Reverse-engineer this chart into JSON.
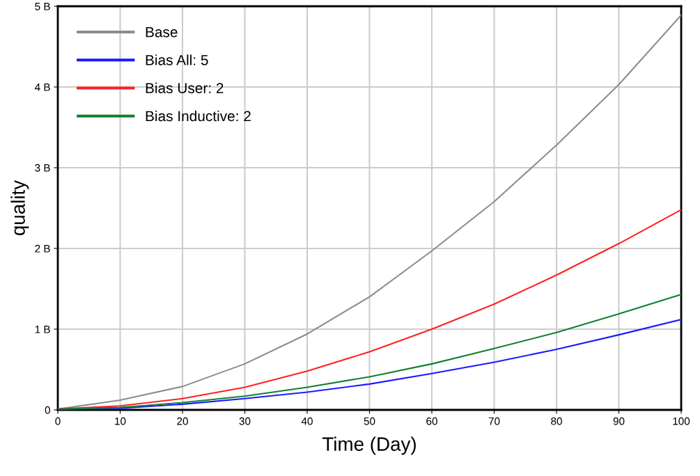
{
  "chart_data": {
    "type": "line",
    "xlabel": "Time (Day)",
    "ylabel": "quality",
    "x": [
      0,
      10,
      20,
      30,
      40,
      50,
      60,
      70,
      80,
      90,
      100
    ],
    "series": [
      {
        "name": "Base",
        "color": "#8c8c8c",
        "values": [
          0.01,
          0.12,
          0.29,
          0.57,
          0.94,
          1.4,
          1.97,
          2.58,
          3.28,
          4.03,
          4.89
        ]
      },
      {
        "name": "Bias All: 5",
        "color": "#1a1aff",
        "values": [
          0.01,
          0.02,
          0.07,
          0.14,
          0.22,
          0.32,
          0.45,
          0.59,
          0.75,
          0.93,
          1.12
        ]
      },
      {
        "name": "Bias User: 2",
        "color": "#ff2020",
        "values": [
          0.01,
          0.05,
          0.14,
          0.28,
          0.48,
          0.72,
          1.0,
          1.31,
          1.67,
          2.06,
          2.48
        ]
      },
      {
        "name": "Bias Inductive: 2",
        "color": "#108030",
        "values": [
          0.01,
          0.03,
          0.09,
          0.17,
          0.28,
          0.41,
          0.57,
          0.76,
          0.96,
          1.19,
          1.43
        ]
      }
    ],
    "xlim": [
      0,
      100
    ],
    "xticks": [
      0,
      10,
      20,
      30,
      40,
      50,
      60,
      70,
      80,
      90,
      100
    ],
    "ylim": [
      0,
      5
    ],
    "yticks": [
      0,
      {
        "value": 1,
        "label": "1 B"
      },
      {
        "value": 2,
        "label": "2 B"
      },
      {
        "value": 3,
        "label": "3 B"
      },
      {
        "value": 4,
        "label": "4 B"
      },
      {
        "value": 5,
        "label": "5 B"
      }
    ],
    "grid": true,
    "legend": "top left",
    "marker": "none",
    "line_style": "solid"
  }
}
